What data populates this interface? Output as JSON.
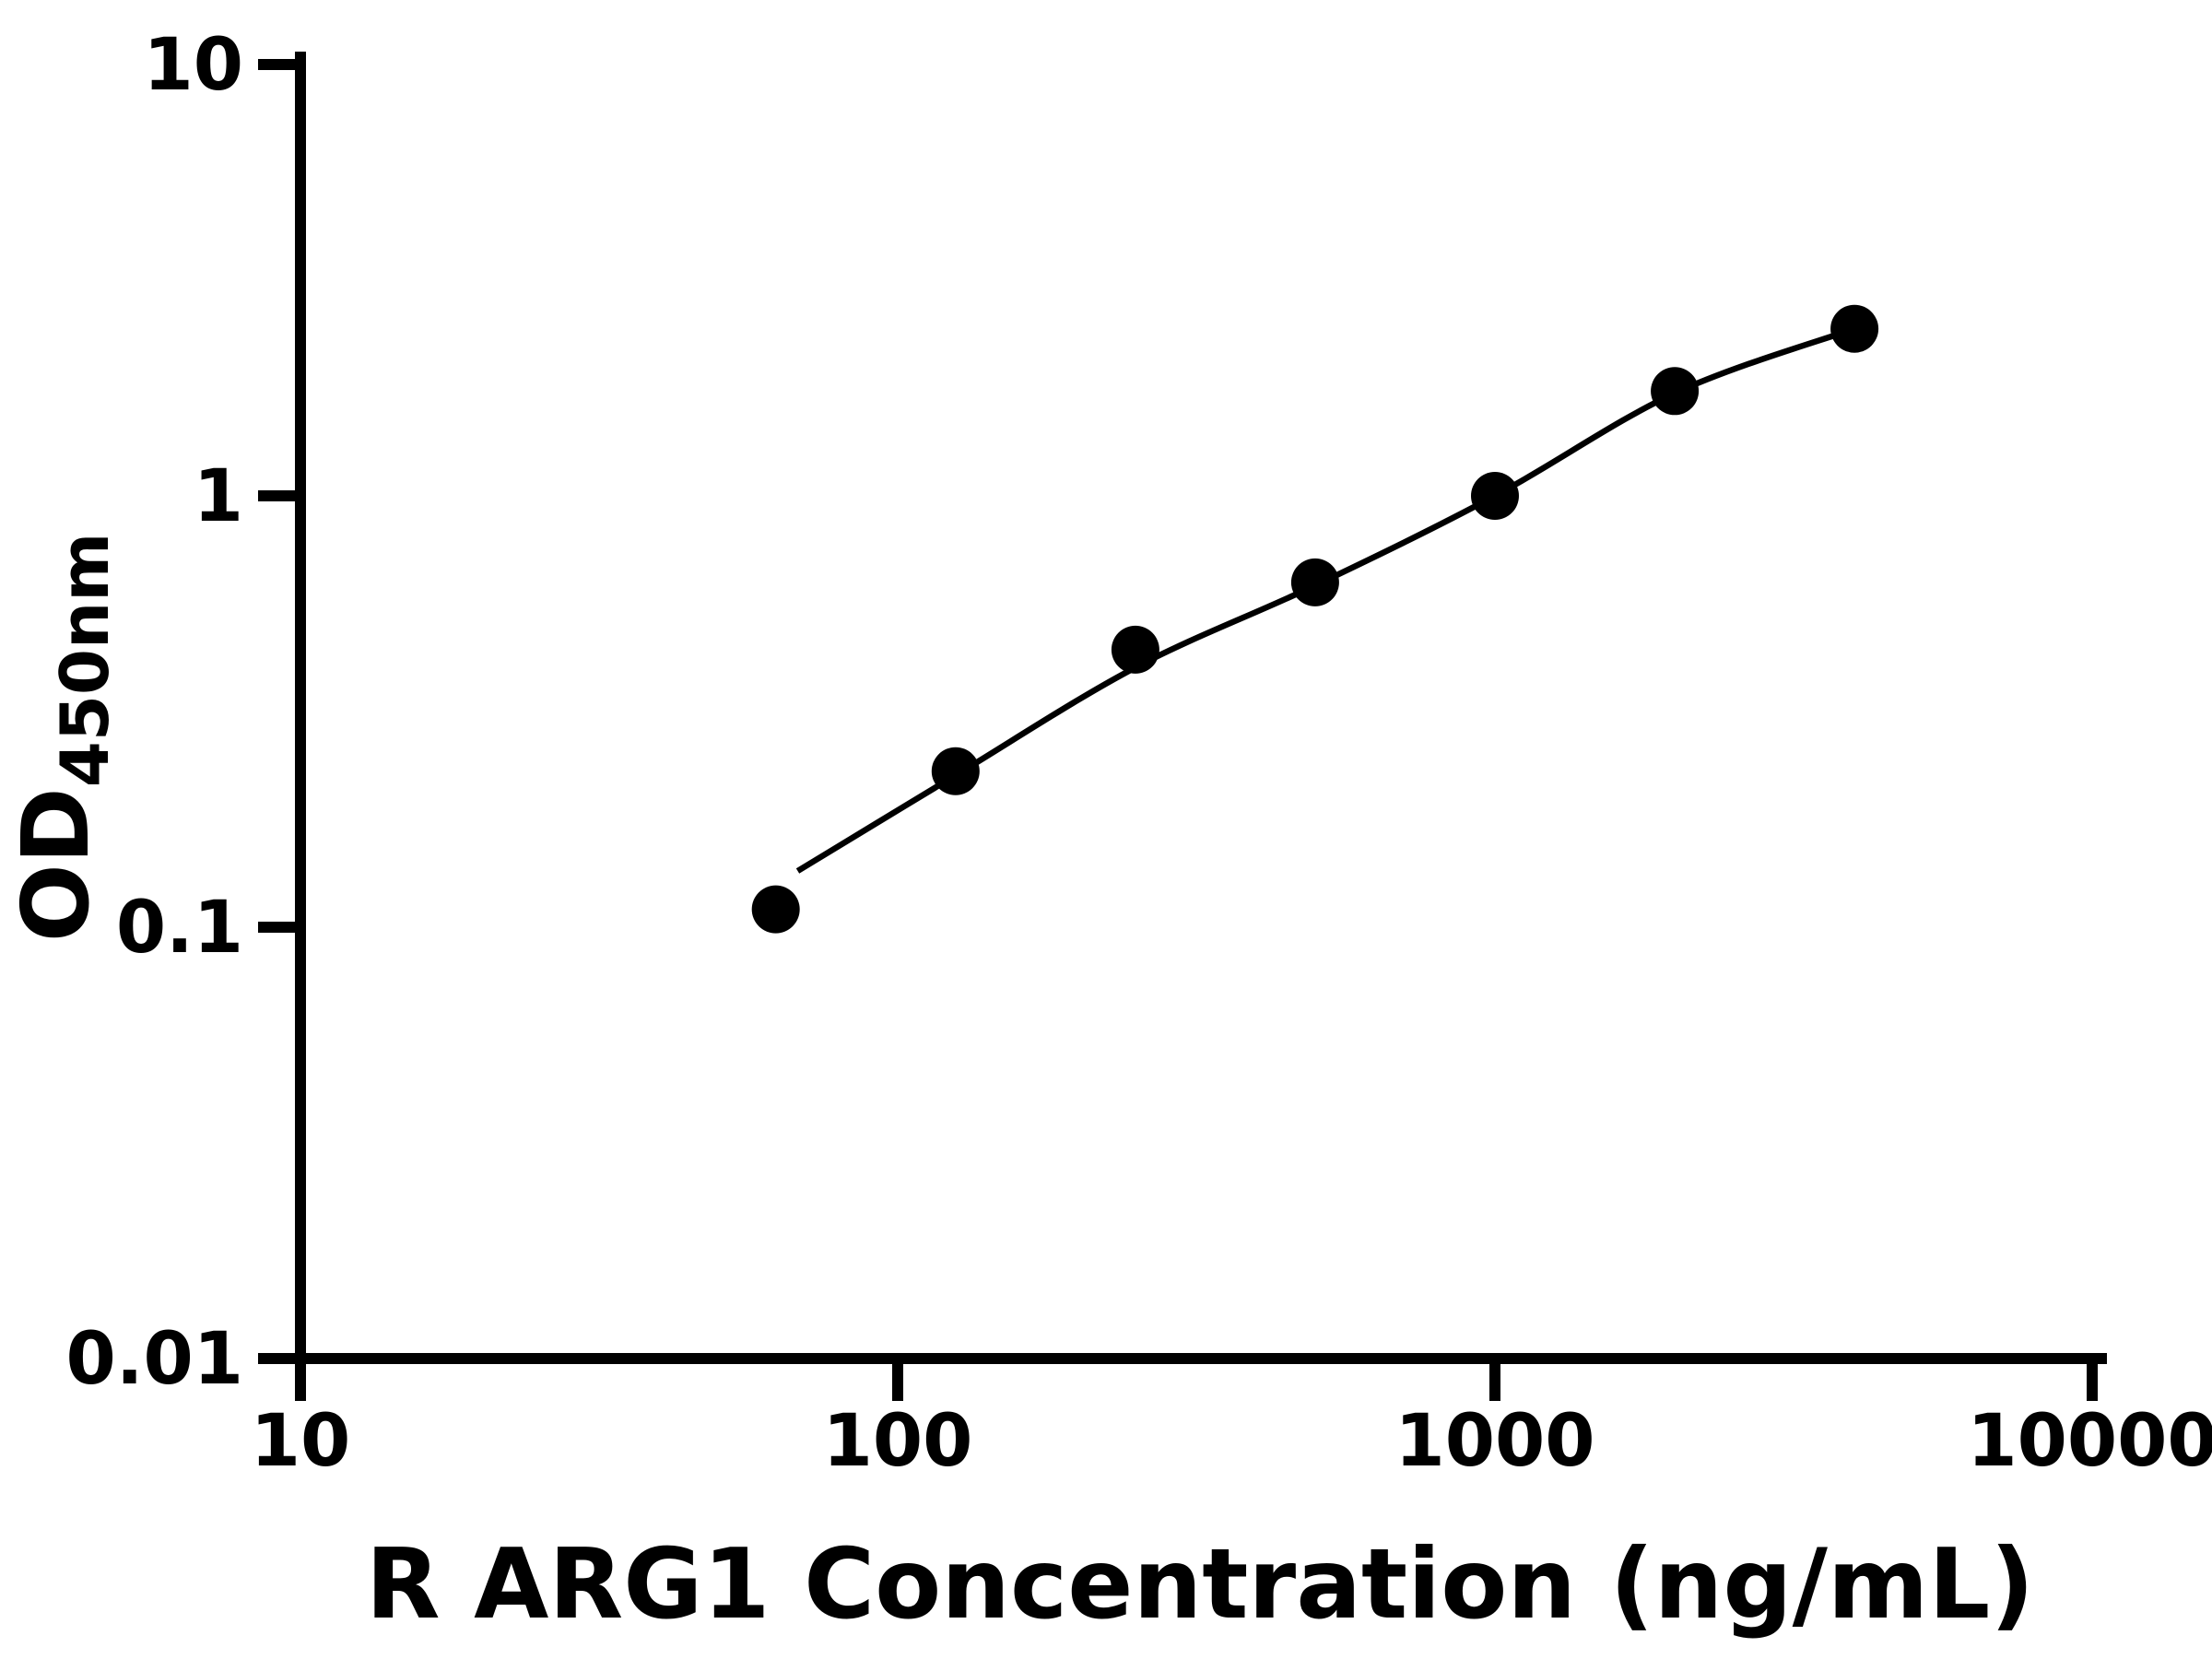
{
  "chart_data": {
    "type": "scatter",
    "title": "",
    "xlabel": "R ARG1 Concentration (ng/mL)",
    "ylabel_main": "OD",
    "ylabel_sub": "450nm",
    "x_scale": "log",
    "y_scale": "log",
    "x_range": [
      10,
      10000
    ],
    "y_range": [
      0.01,
      10
    ],
    "grid": false,
    "legend": false,
    "x_ticks": [
      {
        "value": 10,
        "label": "10"
      },
      {
        "value": 100,
        "label": "100"
      },
      {
        "value": 1000,
        "label": "1000"
      },
      {
        "value": 10000,
        "label": "10000"
      }
    ],
    "y_ticks": [
      {
        "value": 10,
        "label": "10"
      },
      {
        "value": 1,
        "label": "1"
      },
      {
        "value": 0.1,
        "label": "0.1"
      },
      {
        "value": 0.01,
        "label": "0.01"
      }
    ],
    "series": [
      {
        "name": "standard-curve-points",
        "marker": "filled-circle",
        "color": "#000000",
        "points": [
          {
            "x": 62.5,
            "y": 0.11
          },
          {
            "x": 125,
            "y": 0.23
          },
          {
            "x": 250,
            "y": 0.44
          },
          {
            "x": 500,
            "y": 0.63
          },
          {
            "x": 1000,
            "y": 1.0
          },
          {
            "x": 2000,
            "y": 1.75
          },
          {
            "x": 4000,
            "y": 2.44
          }
        ]
      }
    ],
    "fit_curve": {
      "name": "4pl-fit-line",
      "color": "#000000",
      "points": [
        [
          68,
          0.135
        ],
        [
          125,
          0.225
        ],
        [
          250,
          0.4
        ],
        [
          500,
          0.62
        ],
        [
          1000,
          1.0
        ],
        [
          2000,
          1.73
        ],
        [
          4000,
          2.44
        ]
      ]
    }
  }
}
